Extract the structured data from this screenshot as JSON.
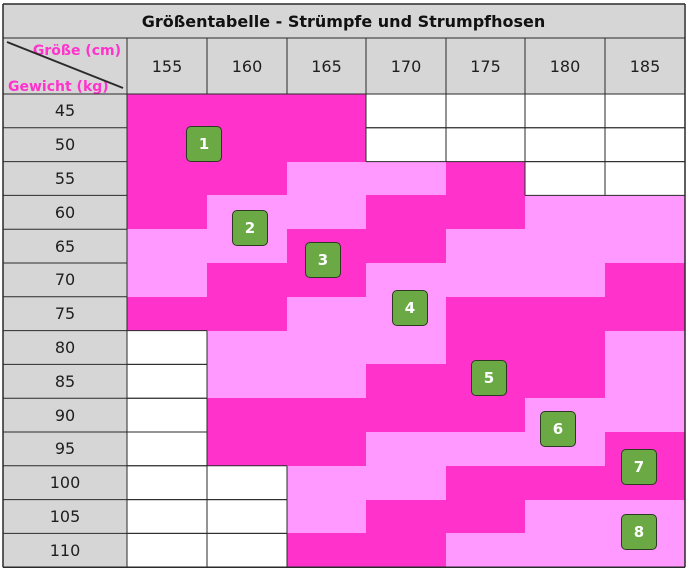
{
  "title": "Größentabelle - Strümpfe und Strumpfhosen",
  "corner": {
    "size_label": "Größe (cm)",
    "weight_label": "Gewicht (kg)"
  },
  "heights": [
    "155",
    "160",
    "165",
    "170",
    "175",
    "180",
    "185"
  ],
  "weights": [
    "45",
    "50",
    "55",
    "60",
    "65",
    "70",
    "75",
    "80",
    "85",
    "90",
    "95",
    "100",
    "105",
    "110"
  ],
  "colors": {
    "header_bg": "#d6d6d6",
    "size_dark": "#ff33cc",
    "size_light": "#ff99ff",
    "none": "#ffffff",
    "badge": "#6aa944",
    "label_pink": "#ff33cc"
  },
  "grid_legend": {
    "0": "no size",
    "1": "size 1",
    "2": "size 2",
    "3": "size 3",
    "4": "size 4",
    "5": "size 5",
    "6": "size 6",
    "7": "size 7",
    "8": "size 8"
  },
  "size_grid": [
    [
      1,
      1,
      1,
      0,
      0,
      0,
      0
    ],
    [
      1,
      1,
      1,
      0,
      0,
      0,
      0
    ],
    [
      1,
      1,
      4,
      4,
      5,
      0,
      0
    ],
    [
      1,
      2,
      2,
      3,
      5,
      6,
      6
    ],
    [
      2,
      2,
      3,
      3,
      4,
      6,
      6
    ],
    [
      2,
      3,
      3,
      4,
      4,
      6,
      7
    ],
    [
      3,
      3,
      4,
      4,
      5,
      5,
      7
    ],
    [
      0,
      4,
      4,
      4,
      5,
      5,
      6
    ],
    [
      0,
      4,
      4,
      5,
      5,
      5,
      6
    ],
    [
      0,
      5,
      5,
      5,
      5,
      6,
      6
    ],
    [
      0,
      5,
      5,
      6,
      6,
      6,
      7
    ],
    [
      0,
      0,
      6,
      6,
      7,
      7,
      7
    ],
    [
      0,
      0,
      6,
      7,
      7,
      8,
      8
    ],
    [
      0,
      0,
      7,
      7,
      8,
      8,
      8
    ]
  ],
  "badges": [
    "1",
    "2",
    "3",
    "4",
    "5",
    "6",
    "7",
    "8"
  ]
}
